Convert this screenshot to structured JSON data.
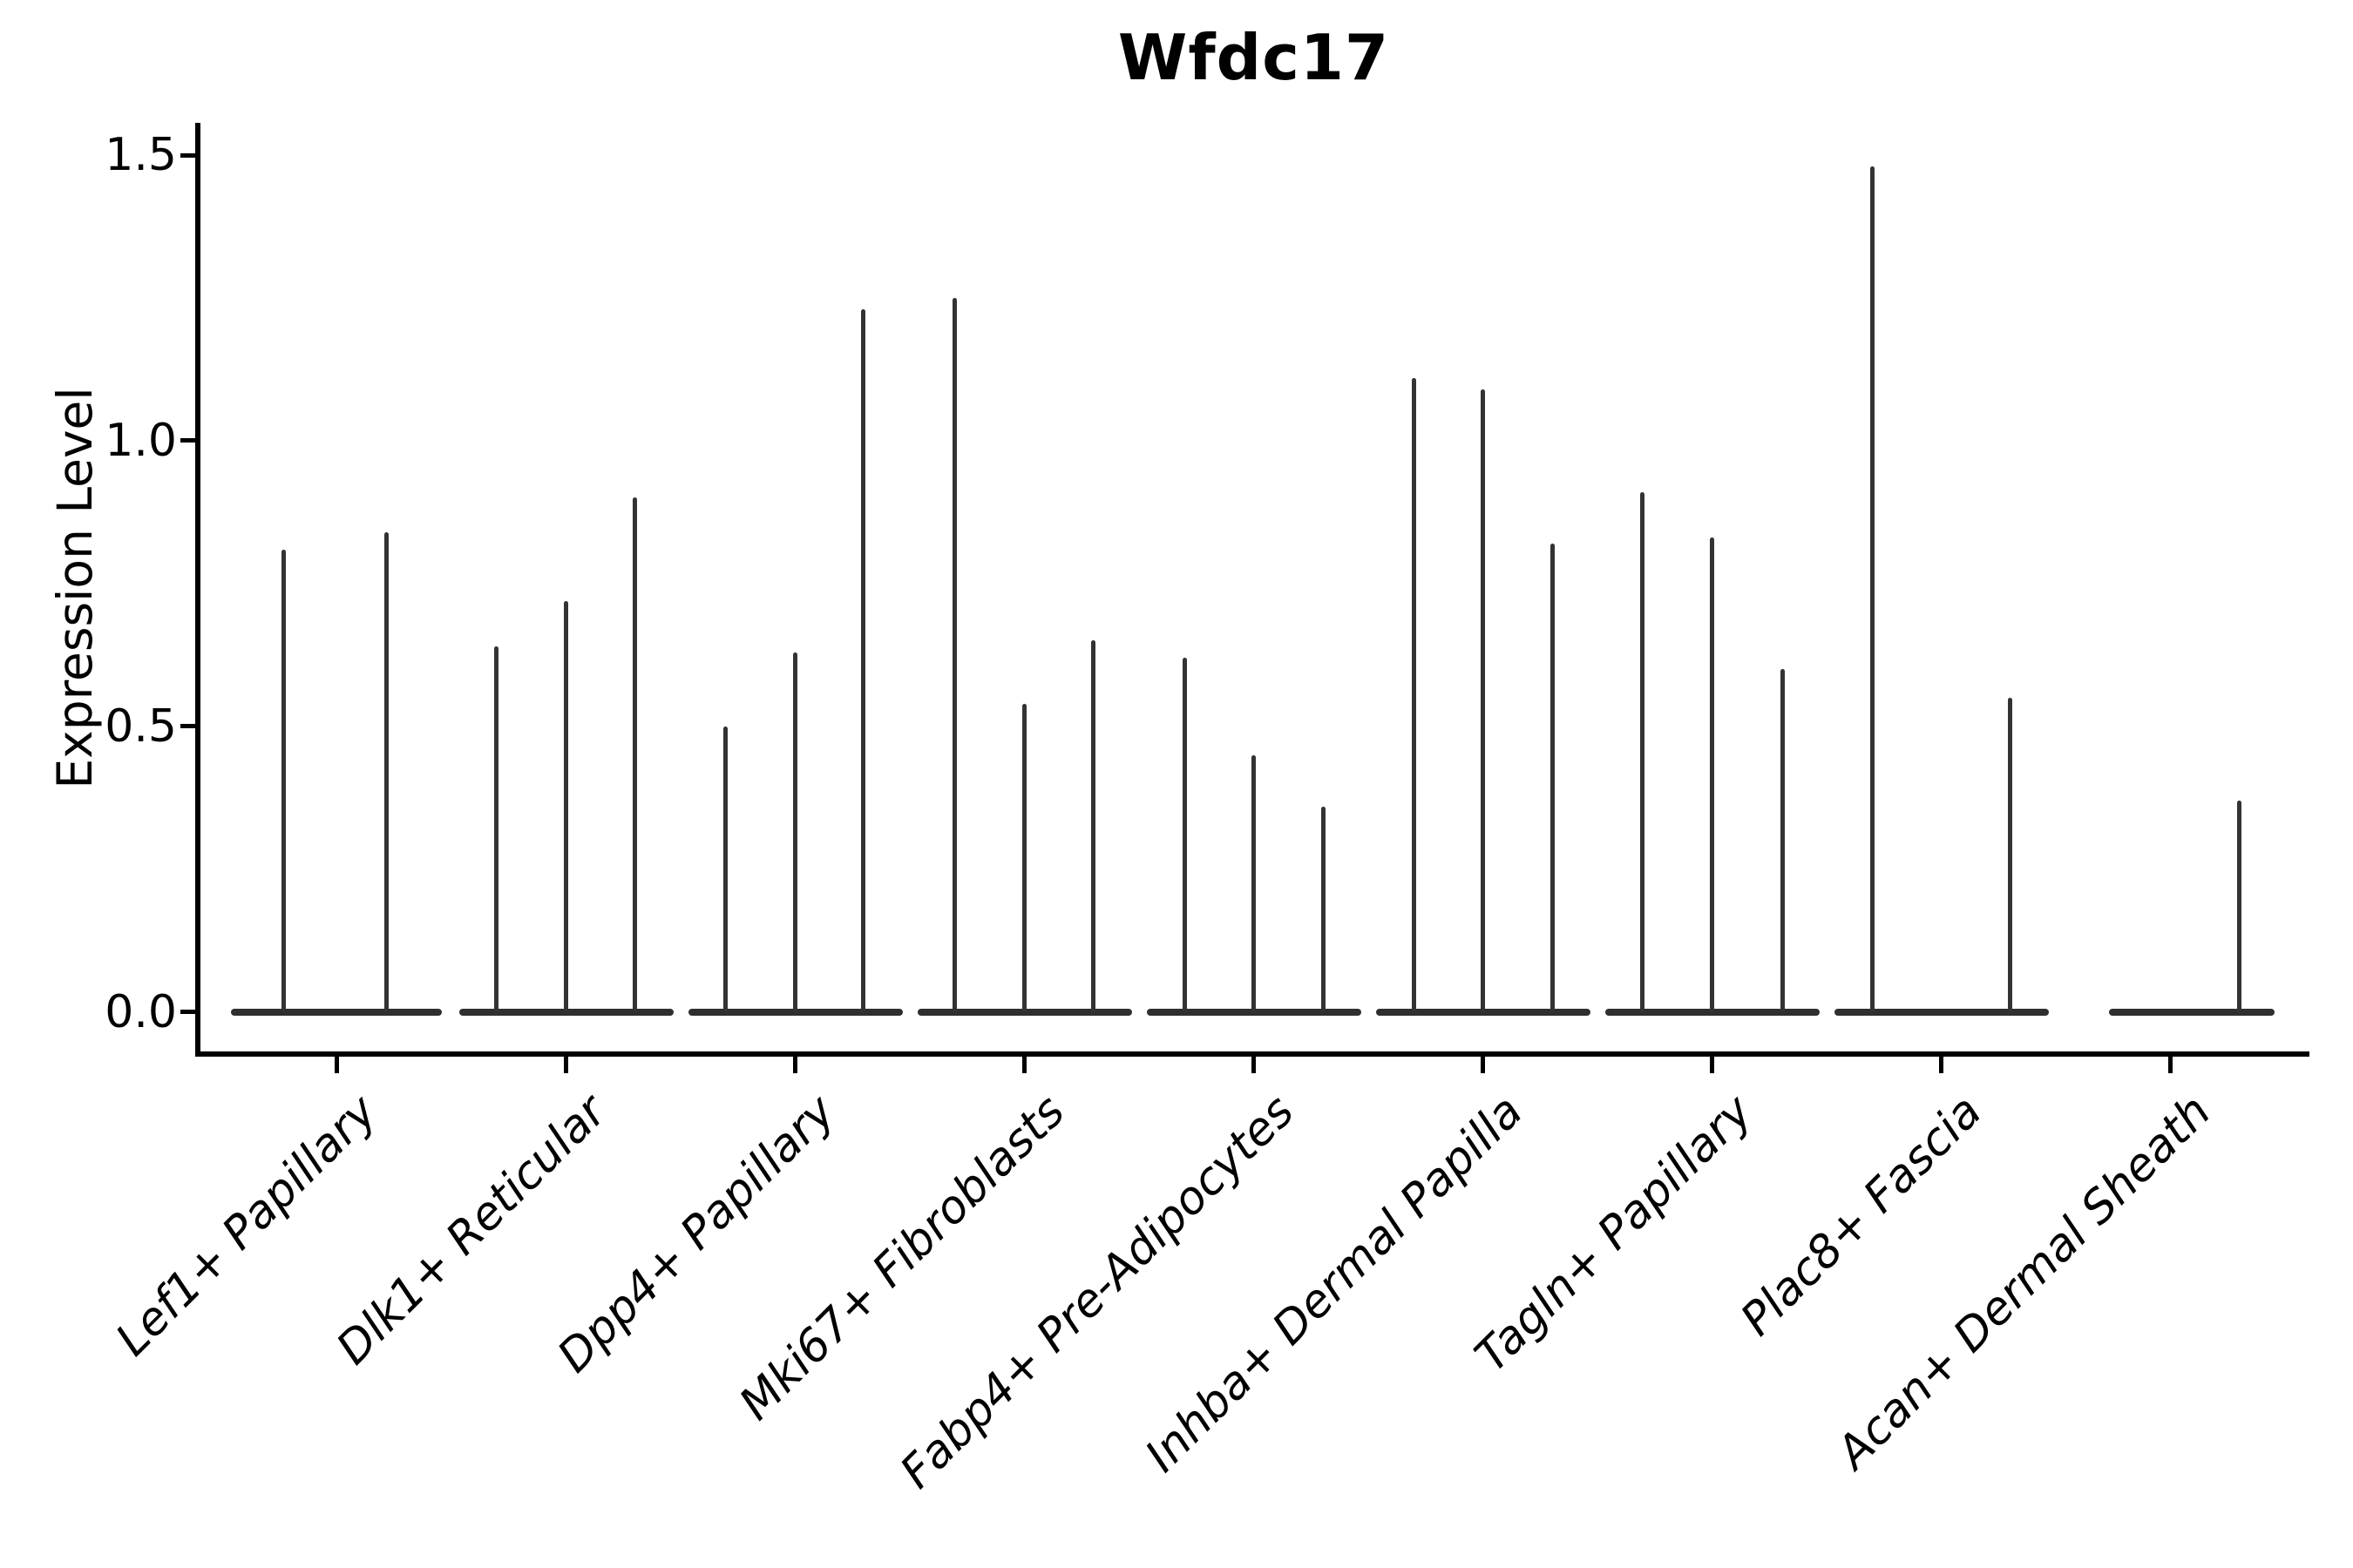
{
  "figure": {
    "title": "Wfdc17",
    "background_color": "#ffffff",
    "axis_color": "#000000",
    "violin_color": "#333333"
  },
  "chart_data": {
    "type": "violin",
    "title": "Wfdc17",
    "subtitle": "",
    "xlabel": "",
    "ylabel": "Expression Level",
    "ylim": [
      0,
      1.55
    ],
    "yticks": [
      "0.0",
      "0.5",
      "1.0",
      "1.5"
    ],
    "grid": false,
    "legend": "none",
    "categories": [
      "Lef1+ Papillary",
      "Dlk1+ Reticular",
      "Dpp4+ Papillary",
      "Mki67+ Fibroblasts",
      "Fabp4+ Pre-Adipocytes",
      "Inhba+ Dermal Papilla",
      "Tagln+ Papillary",
      "Plac8+ Fascia",
      "Acan+ Dermal Sheath"
    ],
    "description": "Violin plot of Wfdc17 expression; each category shows 1-3 very thin violins (most cells at 0, flat base pancake at y=0, thin spike to the max expression value).",
    "groups": [
      {
        "label": "Lef1+ Papillary",
        "base": [
          -121,
          121
        ],
        "violins": [
          {
            "dx": -61,
            "max": 0.81
          },
          {
            "dx": 57,
            "max": 0.84
          }
        ]
      },
      {
        "label": "Dlk1+ Reticular",
        "base": [
          -122,
          124
        ],
        "violins": [
          {
            "dx": -80,
            "max": 0.64
          },
          {
            "dx": 0,
            "max": 0.72
          },
          {
            "dx": 79,
            "max": 0.9
          }
        ]
      },
      {
        "label": "Dpp4+ Papillary",
        "base": [
          -122,
          124
        ],
        "violins": [
          {
            "dx": -80,
            "max": 0.5
          },
          {
            "dx": 0,
            "max": 0.63
          },
          {
            "dx": 78,
            "max": 1.23
          }
        ]
      },
      {
        "label": "Mki67+ Fibroblasts",
        "base": [
          -122,
          124
        ],
        "violins": [
          {
            "dx": -80,
            "max": 1.25
          },
          {
            "dx": 0,
            "max": 0.54
          },
          {
            "dx": 79,
            "max": 0.65
          }
        ]
      },
      {
        "label": "Fabp4+ Pre-Adipocytes",
        "base": [
          -122,
          124
        ],
        "violins": [
          {
            "dx": -79,
            "max": 0.62
          },
          {
            "dx": 0,
            "max": 0.45
          },
          {
            "dx": 80,
            "max": 0.36
          }
        ]
      },
      {
        "label": "Inhba+ Dermal Papilla",
        "base": [
          -122,
          124
        ],
        "violins": [
          {
            "dx": -79,
            "max": 1.11
          },
          {
            "dx": 0,
            "max": 1.09
          },
          {
            "dx": 80,
            "max": 0.82
          }
        ]
      },
      {
        "label": "Tagln+ Papillary",
        "base": [
          -122,
          124
        ],
        "violins": [
          {
            "dx": -80,
            "max": 0.91
          },
          {
            "dx": 0,
            "max": 0.83
          },
          {
            "dx": 81,
            "max": 0.6
          }
        ]
      },
      {
        "label": "Plac8+ Fascia",
        "base": [
          -122,
          124
        ],
        "violins": [
          {
            "dx": -79,
            "max": 1.48
          },
          {
            "dx": 79,
            "max": 0.55
          }
        ]
      },
      {
        "label": "Acan+ Dermal Sheath",
        "base": [
          -70,
          120
        ],
        "violins": [
          {
            "dx": 79,
            "max": 0.37
          }
        ]
      }
    ]
  }
}
